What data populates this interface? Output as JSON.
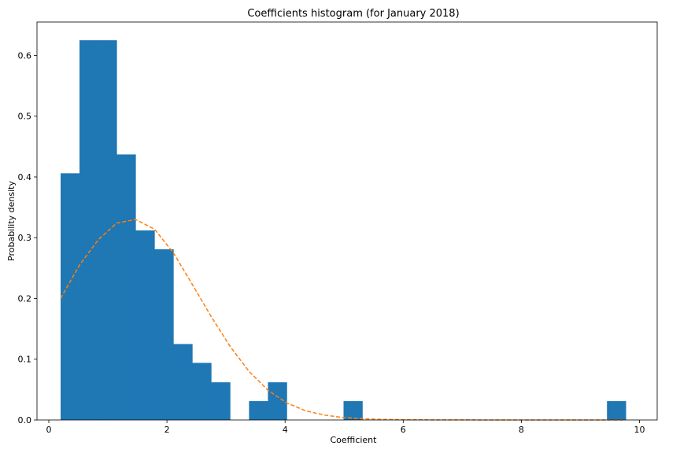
{
  "chart_data": {
    "type": "bar",
    "title": "Coefficients histogram (for January 2018)",
    "xlabel": "Coefficient",
    "ylabel": "Probability density",
    "xlim": [
      -0.2,
      10.3
    ],
    "ylim": [
      0,
      0.655
    ],
    "xticks": [
      0,
      2,
      4,
      6,
      8,
      10
    ],
    "yticks": [
      0.0,
      0.1,
      0.2,
      0.3,
      0.4,
      0.5,
      0.6
    ],
    "grid": false,
    "colors": {
      "bars": "#1f77b4",
      "curve": "#ff7f0e"
    },
    "series": [
      {
        "kind": "histogram",
        "bins": [
          {
            "x0": 0.2,
            "x1": 0.52,
            "value": 0.406
          },
          {
            "x0": 0.52,
            "x1": 0.84,
            "value": 0.625
          },
          {
            "x0": 0.84,
            "x1": 1.15,
            "value": 0.625
          },
          {
            "x0": 1.15,
            "x1": 1.47,
            "value": 0.437
          },
          {
            "x0": 1.47,
            "x1": 1.79,
            "value": 0.312
          },
          {
            "x0": 1.79,
            "x1": 2.11,
            "value": 0.281
          },
          {
            "x0": 2.11,
            "x1": 2.43,
            "value": 0.125
          },
          {
            "x0": 2.43,
            "x1": 2.75,
            "value": 0.094
          },
          {
            "x0": 2.75,
            "x1": 3.07,
            "value": 0.062
          },
          {
            "x0": 3.39,
            "x1": 3.71,
            "value": 0.031
          },
          {
            "x0": 3.71,
            "x1": 4.03,
            "value": 0.062
          },
          {
            "x0": 4.99,
            "x1": 5.31,
            "value": 0.031
          },
          {
            "x0": 9.45,
            "x1": 9.77,
            "value": 0.031
          }
        ]
      },
      {
        "kind": "line",
        "style": "dashed",
        "x": [
          0.2,
          0.52,
          0.84,
          1.15,
          1.47,
          1.79,
          2.11,
          2.43,
          2.75,
          3.07,
          3.39,
          3.71,
          4.03,
          4.35,
          4.67,
          4.99,
          5.31,
          5.63,
          5.95,
          6.5,
          7.0,
          8.0,
          9.0,
          9.77
        ],
        "y": [
          0.2,
          0.255,
          0.297,
          0.324,
          0.33,
          0.314,
          0.275,
          0.223,
          0.17,
          0.121,
          0.08,
          0.049,
          0.028,
          0.015,
          0.008,
          0.004,
          0.002,
          0.001,
          0.0005,
          0.0002,
          0.0001,
          0.0,
          0.0,
          0.0
        ]
      }
    ]
  }
}
